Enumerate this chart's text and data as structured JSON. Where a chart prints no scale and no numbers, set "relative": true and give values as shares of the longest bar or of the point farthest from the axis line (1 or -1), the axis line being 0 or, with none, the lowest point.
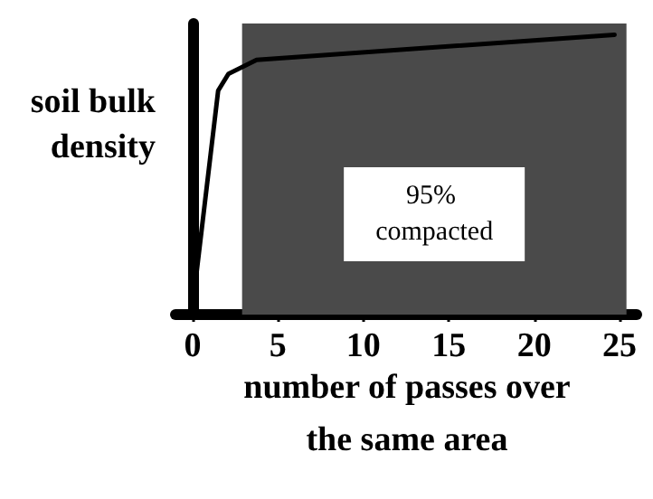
{
  "chart_data": {
    "type": "line",
    "relative": true,
    "xlabel": "number of passes over the same area",
    "ylabel": "soil bulk density",
    "x": [
      0.1,
      1.5,
      2.1,
      3.75,
      24.7
    ],
    "series": [
      {
        "color": "#000000",
        "values": [
          0.08,
          0.8,
          0.86,
          0.91,
          1
        ]
      }
    ],
    "xlim": [
      -1,
      26
    ],
    "xticks": [
      0,
      5,
      10,
      15,
      20,
      25
    ],
    "bands": [
      {
        "axis": "x",
        "from": 2.9,
        "to": 25.4,
        "label": "95% compacted",
        "color": "#4a4a4a"
      }
    ],
    "marker": "none",
    "line_style": "solid"
  }
}
